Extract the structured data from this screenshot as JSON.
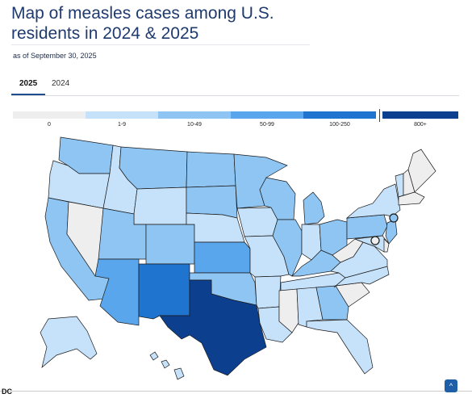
{
  "header": {
    "title": "Map of measles cases among U.S. residents in 2024 & 2025",
    "subtitle": "as of September 30, 2025"
  },
  "tabs": [
    {
      "label": "2025",
      "active": true
    },
    {
      "label": "2024",
      "active": false
    }
  ],
  "legend": [
    {
      "label": "0",
      "color": "#eeeeee"
    },
    {
      "label": "1-9",
      "color": "#c6e2fa"
    },
    {
      "label": "10-49",
      "color": "#8ec5f3"
    },
    {
      "label": "50-99",
      "color": "#5aa6ec"
    },
    {
      "label": "100-250",
      "color": "#1f74d0"
    },
    {
      "label": "800+",
      "color": "#0d3f8f"
    }
  ],
  "colors": {
    "c0": "#eeeeee",
    "c1": "#c6e2fa",
    "c2": "#8ec5f3",
    "c3": "#5aa6ec",
    "c4": "#1f74d0",
    "c5": "#0d3f8f"
  },
  "states": [
    {
      "abbr": "WA",
      "cat": 2
    },
    {
      "abbr": "OR",
      "cat": 1
    },
    {
      "abbr": "CA",
      "cat": 2
    },
    {
      "abbr": "NV",
      "cat": 0
    },
    {
      "abbr": "ID",
      "cat": 1
    },
    {
      "abbr": "MT",
      "cat": 2
    },
    {
      "abbr": "WY",
      "cat": 1
    },
    {
      "abbr": "UT",
      "cat": 2
    },
    {
      "abbr": "AZ",
      "cat": 3
    },
    {
      "abbr": "CO",
      "cat": 2
    },
    {
      "abbr": "NM",
      "cat": 4
    },
    {
      "abbr": "ND",
      "cat": 2
    },
    {
      "abbr": "SD",
      "cat": 2
    },
    {
      "abbr": "NE",
      "cat": 1
    },
    {
      "abbr": "KS",
      "cat": 3
    },
    {
      "abbr": "OK",
      "cat": 2
    },
    {
      "abbr": "TX",
      "cat": 5
    },
    {
      "abbr": "MN",
      "cat": 2
    },
    {
      "abbr": "IA",
      "cat": 1
    },
    {
      "abbr": "MO",
      "cat": 1
    },
    {
      "abbr": "AR",
      "cat": 1
    },
    {
      "abbr": "LA",
      "cat": 1
    },
    {
      "abbr": "WI",
      "cat": 2
    },
    {
      "abbr": "IL",
      "cat": 2
    },
    {
      "abbr": "MI",
      "cat": 2
    },
    {
      "abbr": "IN",
      "cat": 1
    },
    {
      "abbr": "OH",
      "cat": 2
    },
    {
      "abbr": "KY",
      "cat": 2
    },
    {
      "abbr": "TN",
      "cat": 1
    },
    {
      "abbr": "MS",
      "cat": 0
    },
    {
      "abbr": "AL",
      "cat": 1
    },
    {
      "abbr": "GA",
      "cat": 2
    },
    {
      "abbr": "FL",
      "cat": 1
    },
    {
      "abbr": "SC",
      "cat": 0
    },
    {
      "abbr": "NC",
      "cat": 1
    },
    {
      "abbr": "VA",
      "cat": 1
    },
    {
      "abbr": "WV",
      "cat": 0
    },
    {
      "abbr": "PA",
      "cat": 2
    },
    {
      "abbr": "NY",
      "cat": 1
    },
    {
      "abbr": "VT",
      "cat": 1
    },
    {
      "abbr": "NH",
      "cat": 0
    },
    {
      "abbr": "ME",
      "cat": 0
    },
    {
      "abbr": "MA",
      "cat": 0
    },
    {
      "abbr": "NJ",
      "cat": 2
    },
    {
      "abbr": "MD",
      "cat": 1
    },
    {
      "abbr": "DE",
      "cat": 0
    },
    {
      "abbr": "AK",
      "cat": 1
    },
    {
      "abbr": "HI",
      "cat": 1
    },
    {
      "abbr": "NYC",
      "cat": 2
    },
    {
      "abbr": "DC",
      "cat": 0
    }
  ],
  "footer": {
    "credit": "DC",
    "scroll_top_icon": "chevron-up-icon",
    "scroll_top_glyph": "^"
  }
}
